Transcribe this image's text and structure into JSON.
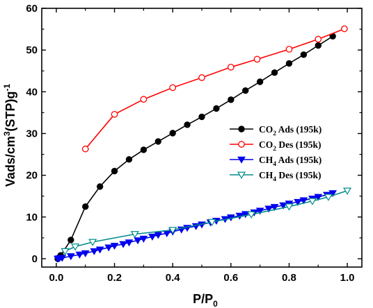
{
  "chart_data": {
    "type": "line",
    "xlabel": {
      "main": "P/P",
      "sub": "0"
    },
    "ylabel": {
      "main": "Vads/cm",
      "sup": "3",
      "rest": "(STP)g",
      "sup2": "-1"
    },
    "xlim": [
      -0.05,
      1.05
    ],
    "ylim": [
      -2,
      60
    ],
    "xticks": [
      0.0,
      0.2,
      0.4,
      0.6,
      0.8,
      1.0
    ],
    "xtick_labels": [
      "0.0",
      "0.2",
      "0.4",
      "0.6",
      "0.8",
      "1.0"
    ],
    "yticks": [
      0,
      10,
      20,
      30,
      40,
      50,
      60
    ],
    "ytick_labels": [
      "0",
      "10",
      "20",
      "30",
      "40",
      "50",
      "60"
    ],
    "grid": false,
    "legend_position": "right-middle",
    "series": [
      {
        "legend": {
          "pre": "CO",
          "sub": "2",
          "post": " Ads (195k)"
        },
        "color": "#000000",
        "marker": "filled-circle",
        "x": [
          0.005,
          0.01,
          0.015,
          0.05,
          0.1,
          0.15,
          0.2,
          0.25,
          0.3,
          0.35,
          0.4,
          0.45,
          0.5,
          0.55,
          0.6,
          0.65,
          0.7,
          0.75,
          0.8,
          0.85,
          0.9,
          0.95
        ],
        "y": [
          0,
          0.3,
          0.8,
          4.5,
          12.5,
          17.3,
          21,
          23.8,
          26.1,
          28.1,
          30.1,
          32.1,
          34,
          36,
          38.1,
          40.3,
          42.4,
          44.6,
          46.8,
          48.9,
          51.1,
          53.3
        ]
      },
      {
        "legend": {
          "pre": "CO",
          "sub": "2",
          "post": " Des (195k)"
        },
        "color": "#ff0000",
        "marker": "open-circle",
        "x": [
          0.1,
          0.2,
          0.3,
          0.4,
          0.5,
          0.6,
          0.69,
          0.8,
          0.9,
          0.99
        ],
        "y": [
          26.3,
          34.6,
          38.2,
          41,
          43.4,
          45.9,
          47.8,
          50.2,
          52.6,
          55.1
        ]
      },
      {
        "legend": {
          "pre": "CH",
          "sub": "4",
          "post": " Ads (195k)"
        },
        "color": "#0000ee",
        "marker": "filled-triangle-down",
        "x": [
          0.005,
          0.01,
          0.02,
          0.05,
          0.08,
          0.1,
          0.13,
          0.15,
          0.18,
          0.2,
          0.23,
          0.25,
          0.28,
          0.3,
          0.33,
          0.35,
          0.38,
          0.4,
          0.43,
          0.45,
          0.48,
          0.5,
          0.53,
          0.55,
          0.58,
          0.6,
          0.63,
          0.65,
          0.68,
          0.7,
          0.73,
          0.75,
          0.78,
          0.8,
          0.83,
          0.85,
          0.88,
          0.9,
          0.93,
          0.95
        ],
        "y": [
          0,
          0.1,
          0.2,
          0.6,
          1.0,
          1.3,
          1.8,
          2.2,
          2.7,
          3.1,
          3.5,
          3.9,
          4.4,
          4.8,
          5.3,
          5.7,
          6.1,
          6.5,
          7.0,
          7.4,
          7.8,
          8.2,
          8.7,
          9.1,
          9.5,
          9.9,
          10.3,
          10.7,
          11.1,
          11.5,
          12.0,
          12.4,
          12.8,
          13.2,
          13.6,
          14.0,
          14.4,
          14.8,
          15.3,
          15.7
        ]
      },
      {
        "legend": {
          "pre": "CH",
          "sub": "4",
          "post": " Des (195k)"
        },
        "color": "#008b8b",
        "marker": "open-triangle-down",
        "x": [
          0.03,
          0.065,
          0.125,
          0.27,
          0.4,
          0.535,
          0.67,
          0.8,
          0.88,
          0.935,
          1.0
        ],
        "y": [
          1.8,
          2.9,
          4.0,
          5.9,
          6.9,
          8.8,
          10.6,
          12.5,
          13.8,
          14.8,
          16.3
        ]
      }
    ]
  }
}
